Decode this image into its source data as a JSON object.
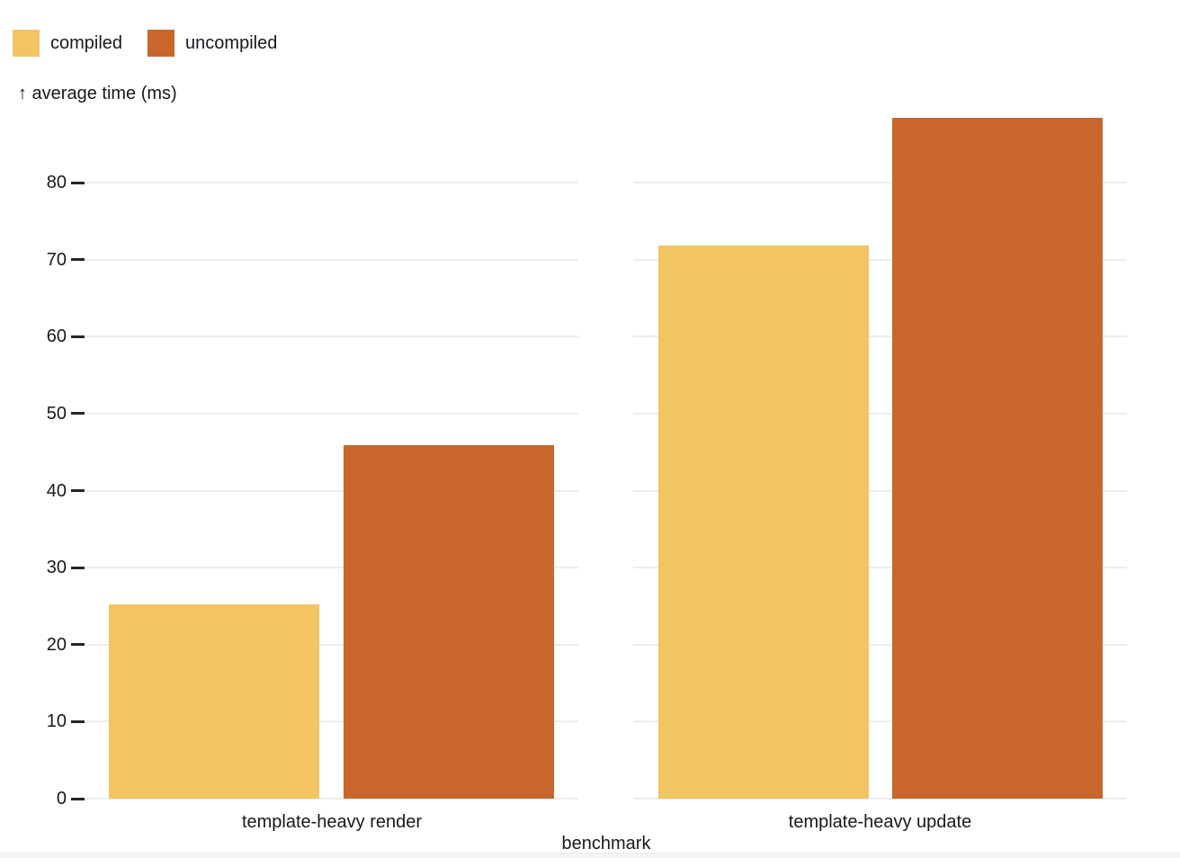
{
  "legend": {
    "items": [
      {
        "label": "compiled",
        "color": "#f2c462"
      },
      {
        "label": "uncompiled",
        "color": "#c8662b"
      }
    ]
  },
  "y_axis": {
    "label": "↑ average time (ms)",
    "ticks": [
      0,
      10,
      20,
      30,
      40,
      50,
      60,
      70,
      80
    ]
  },
  "x_axis": {
    "label": "benchmark",
    "categories": [
      "template-heavy render",
      "template-heavy update"
    ]
  },
  "chart_data": {
    "type": "bar",
    "title": "",
    "categories": [
      "template-heavy render",
      "template-heavy update"
    ],
    "series": [
      {
        "name": "compiled",
        "color": "#f2c462",
        "values": [
          25.2,
          71.8
        ]
      },
      {
        "name": "uncompiled",
        "color": "#c8662b",
        "values": [
          45.9,
          88.4
        ]
      }
    ],
    "xlabel": "benchmark",
    "ylabel": "average time (ms)",
    "ylim": [
      0,
      90
    ],
    "y_ticks": [
      0,
      10,
      20,
      30,
      40,
      50,
      60,
      70,
      80
    ],
    "grid": true,
    "faceted": true,
    "legend_position": "top-left",
    "background": "#ffffff",
    "gridline_color": "#ededed",
    "text_color": "#16191d"
  }
}
